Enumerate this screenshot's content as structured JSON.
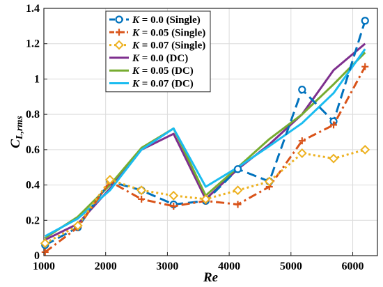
{
  "chart_data": {
    "type": "line",
    "xlabel": "Re",
    "ylabel_main": "C",
    "ylabel_sub": "L,rms",
    "xlim": [
      1000,
      6400
    ],
    "ylim": [
      0,
      1.4
    ],
    "xticks": [
      1000,
      2000,
      3000,
      4000,
      5000,
      6000
    ],
    "yticks": [
      0,
      0.2,
      0.4,
      0.6,
      0.8,
      1,
      1.2,
      1.4
    ],
    "grid": true,
    "legend_position": "top-left",
    "series": [
      {
        "name": "K = 0.0 (Single)",
        "k": "K",
        "rest": " = 0.0 (Single)",
        "color": "#0072BD",
        "dash": "14,7",
        "width": 3,
        "marker": "circle",
        "x": [
          1020,
          1550,
          2070,
          2580,
          3100,
          3620,
          4140,
          4650,
          5180,
          5690,
          6200
        ],
        "y": [
          0.06,
          0.16,
          0.42,
          0.37,
          0.29,
          0.31,
          0.49,
          0.42,
          0.94,
          0.76,
          1.33
        ]
      },
      {
        "name": "K = 0.05 (Single)",
        "k": "K",
        "rest": " = 0.05 (Single)",
        "color": "#D95319",
        "dash": "12,5,3,5",
        "width": 3,
        "marker": "plus",
        "x": [
          1020,
          1550,
          2070,
          2580,
          3100,
          3620,
          4140,
          4650,
          5180,
          5690,
          6200
        ],
        "y": [
          0.02,
          0.16,
          0.42,
          0.32,
          0.28,
          0.31,
          0.29,
          0.39,
          0.65,
          0.74,
          1.07
        ]
      },
      {
        "name": "K = 0.07 (Single)",
        "k": "K",
        "rest": " = 0.07 (Single)",
        "color": "#EDB120",
        "dash": "3,4",
        "width": 3,
        "marker": "diamond",
        "x": [
          1020,
          1550,
          2070,
          2580,
          3100,
          3620,
          4140,
          4650,
          5180,
          5690,
          6200
        ],
        "y": [
          0.07,
          0.17,
          0.43,
          0.37,
          0.34,
          0.32,
          0.37,
          0.42,
          0.58,
          0.55,
          0.6
        ]
      },
      {
        "name": "K = 0.0 (DC)",
        "k": "K",
        "rest": " = 0.0 (DC)",
        "color": "#7E2F8E",
        "dash": "",
        "width": 3,
        "marker": "none",
        "x": [
          1020,
          1550,
          2070,
          2580,
          3100,
          3620,
          4140,
          4650,
          5180,
          5690,
          6200
        ],
        "y": [
          0.09,
          0.18,
          0.38,
          0.6,
          0.69,
          0.32,
          0.49,
          0.63,
          0.8,
          1.05,
          1.2
        ]
      },
      {
        "name": "K = 0.05 (DC)",
        "k": "K",
        "rest": " = 0.05 (DC)",
        "color": "#77AC30",
        "dash": "",
        "width": 3,
        "marker": "none",
        "x": [
          1020,
          1550,
          2070,
          2580,
          3100,
          3620,
          4140,
          4650,
          5180,
          5690,
          6200
        ],
        "y": [
          0.1,
          0.22,
          0.4,
          0.61,
          0.72,
          0.34,
          0.5,
          0.66,
          0.8,
          0.97,
          1.15
        ]
      },
      {
        "name": "K = 0.07 (DC)",
        "k": "K",
        "rest": " = 0.07 (DC)",
        "color": "#1ABCF0",
        "dash": "",
        "width": 3,
        "marker": "none",
        "x": [
          1020,
          1550,
          2070,
          2580,
          3100,
          3620,
          4140,
          4650,
          5180,
          5690,
          6200
        ],
        "y": [
          0.11,
          0.21,
          0.37,
          0.6,
          0.72,
          0.39,
          0.5,
          0.62,
          0.75,
          0.92,
          1.17
        ]
      }
    ]
  }
}
